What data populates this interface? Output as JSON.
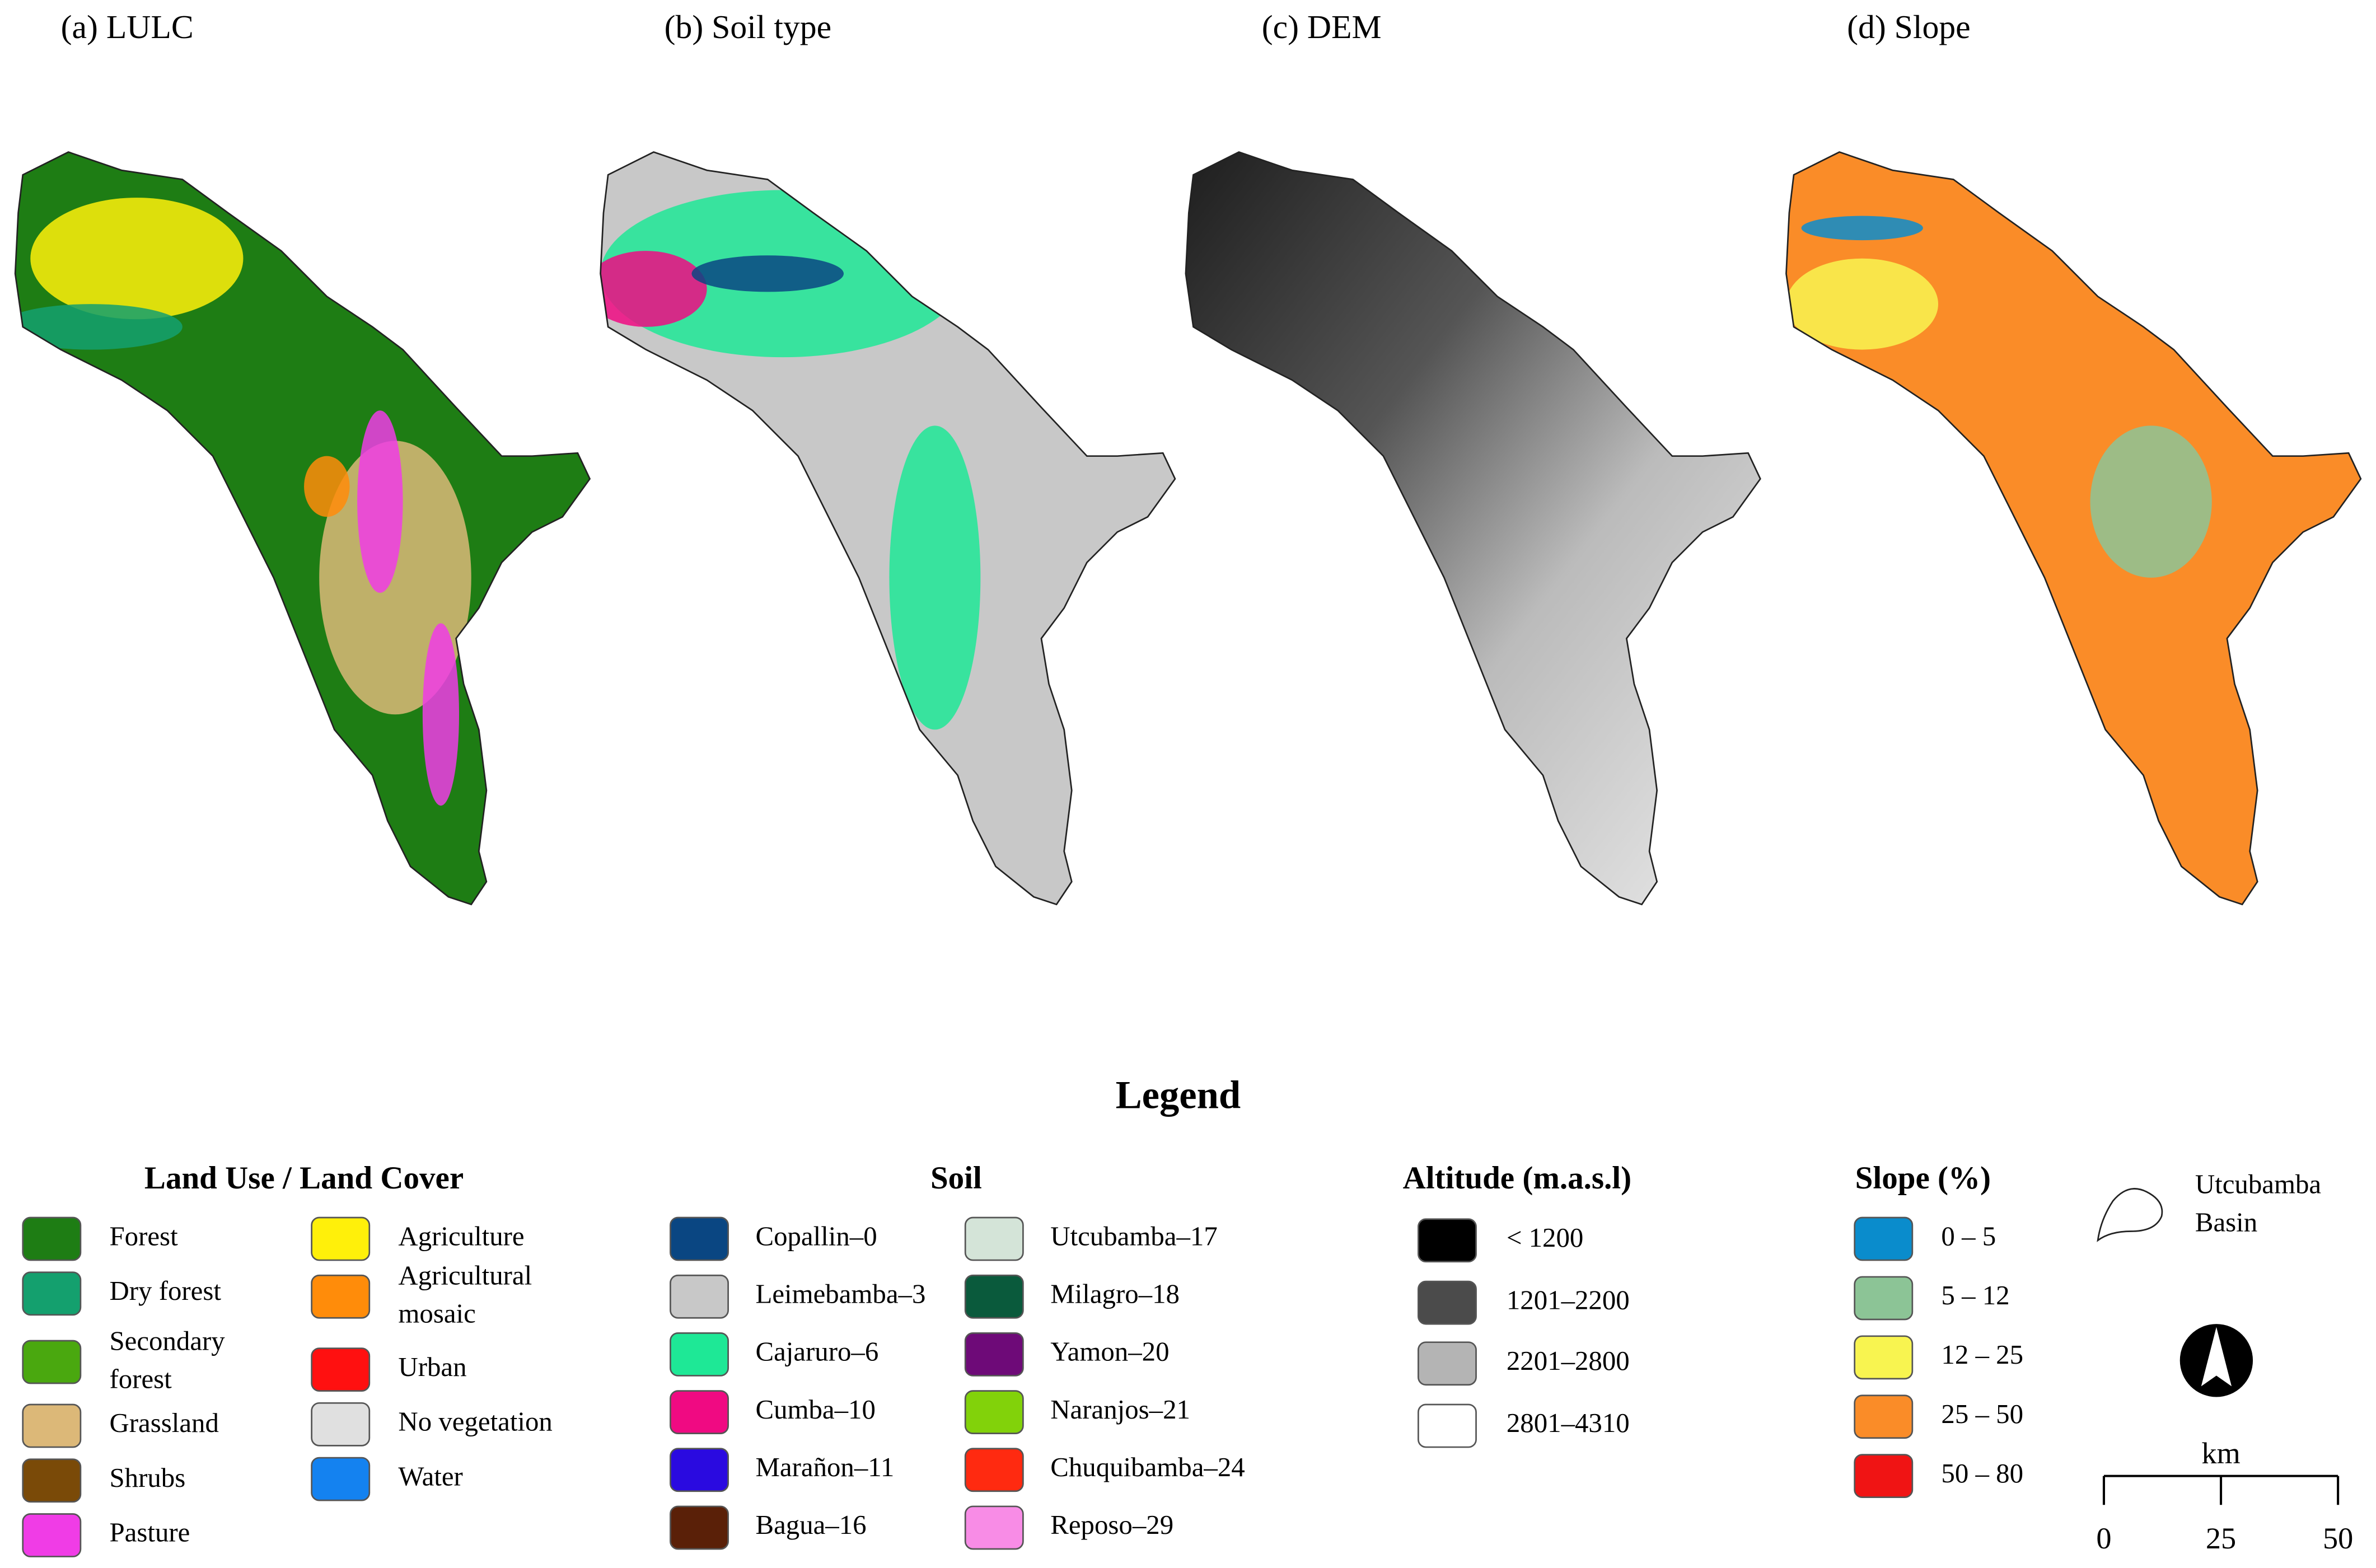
{
  "panels": [
    {
      "title": "(a) LULC"
    },
    {
      "title": "(b) Soil type"
    },
    {
      "title": "(c) DEM"
    },
    {
      "title": "(d) Slope"
    }
  ],
  "legend": {
    "title": "Legend",
    "lulc": {
      "title": "Land Use / Land Cover",
      "items": [
        {
          "label": "Forest",
          "color": "#1e7d14"
        },
        {
          "label": "Dry forest",
          "color": "#14a06e"
        },
        {
          "label": "Secondary forest",
          "color": "#4aa80f"
        },
        {
          "label": "Grassland",
          "color": "#dcb878"
        },
        {
          "label": "Shrubs",
          "color": "#7a4a08"
        },
        {
          "label": "Pasture",
          "color": "#f03ce6"
        },
        {
          "label": "Agriculture",
          "color": "#fff00a"
        },
        {
          "label": "Agricultural mosaic",
          "color": "#ff8c0a"
        },
        {
          "label": "Urban",
          "color": "#ff1010"
        },
        {
          "label": "No vegetation",
          "color": "#e0e0e0"
        },
        {
          "label": "Water",
          "color": "#1482f0"
        }
      ]
    },
    "soil": {
      "title": "Soil",
      "items": [
        {
          "label": "Copallin–0",
          "color": "#0a4682"
        },
        {
          "label": "Leimebamba–3",
          "color": "#c8c8c8"
        },
        {
          "label": "Cajaruro–6",
          "color": "#1ee896"
        },
        {
          "label": "Cumba–10",
          "color": "#f00a82"
        },
        {
          "label": "Marañon–11",
          "color": "#2a0ae0"
        },
        {
          "label": "Bagua–16",
          "color": "#5a2008"
        },
        {
          "label": "Utcubamba–17",
          "color": "#d4e4d8"
        },
        {
          "label": "Milagro–18",
          "color": "#0a5a3c"
        },
        {
          "label": "Yamon–20",
          "color": "#6e0a78"
        },
        {
          "label": "Naranjos–21",
          "color": "#82d20a"
        },
        {
          "label": "Chuquibamba–24",
          "color": "#ff2a10"
        },
        {
          "label": "Reposo–29",
          "color": "#f88ce6"
        }
      ]
    },
    "altitude": {
      "title": "Altitude (m.a.s.l)",
      "items": [
        {
          "label": "< 1200",
          "color": "#000000"
        },
        {
          "label": "1201–2200",
          "color": "#4b4b4b"
        },
        {
          "label": "2201–2800",
          "color": "#b4b4b4"
        },
        {
          "label": "2801–4310",
          "color": "#ffffff"
        }
      ]
    },
    "slope": {
      "title": "Slope (%)",
      "items": [
        {
          "label": "0 – 5",
          "color": "#0a8ccc"
        },
        {
          "label": "5 – 12",
          "color": "#8cc496"
        },
        {
          "label": "12 – 25",
          "color": "#f8f450"
        },
        {
          "label": "25 – 50",
          "color": "#fa8c28"
        },
        {
          "label": "50 – 80",
          "color": "#f01414"
        }
      ]
    },
    "basin": {
      "label": "Utcubamba Basin"
    },
    "scale": {
      "unit": "km",
      "ticks": [
        0,
        25,
        50
      ]
    }
  }
}
